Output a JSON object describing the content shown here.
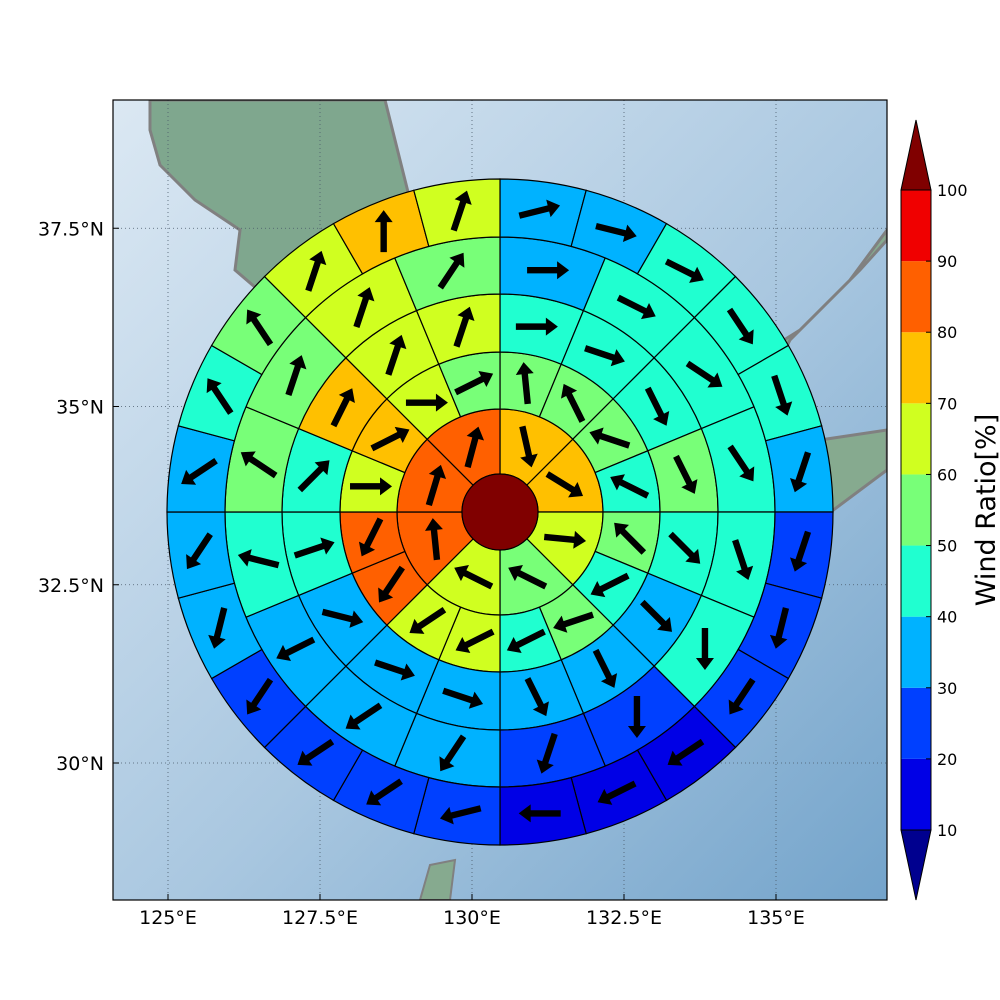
{
  "chart_data": {
    "type": "polar-sector-map",
    "projection_center": {
      "lon": 130.5,
      "lat": 33.5
    },
    "x_ticks": [
      {
        "value": 125.0,
        "label": "125°E"
      },
      {
        "value": 127.5,
        "label": "127.5°E"
      },
      {
        "value": 130.0,
        "label": "130°E"
      },
      {
        "value": 132.5,
        "label": "132.5°E"
      },
      {
        "value": 135.0,
        "label": "135°E"
      }
    ],
    "y_ticks": [
      {
        "value": 30.0,
        "label": "30°N"
      },
      {
        "value": 32.5,
        "label": "32.5°N"
      },
      {
        "value": 35.0,
        "label": "35°N"
      },
      {
        "value": 37.5,
        "label": "37.5°N"
      }
    ],
    "grid": true,
    "colorbar": {
      "label": "Wind Ratio[%]",
      "ticks": [
        "10",
        "20",
        "30",
        "40",
        "50",
        "60",
        "70",
        "80",
        "90",
        "100"
      ],
      "levels": [
        10,
        20,
        30,
        40,
        50,
        60,
        70,
        80,
        90,
        100
      ],
      "colors": [
        "#00008f",
        "#0000e6",
        "#0040ff",
        "#00b2ff",
        "#20ffd0",
        "#78ff78",
        "#d0ff20",
        "#ffc000",
        "#ff6000",
        "#f00000",
        "#800000"
      ],
      "extend": "both"
    },
    "center_cell": {
      "ratio": 100
    },
    "rings": [
      {
        "sectors": [
          {
            "ratio": 75,
            "dir": [
              18,
              -80
            ]
          },
          {
            "ratio": 75,
            "dir": [
              114,
              -70
            ]
          },
          {
            "ratio": 65,
            "dir": [
              210,
              -20
            ]
          },
          {
            "ratio": 55,
            "dir": [
              -60,
              30
            ]
          },
          {
            "ratio": 65,
            "dir": [
              -20,
              10
            ]
          },
          {
            "ratio": 85,
            "dir": [
              -4,
              40
            ]
          },
          {
            "ratio": 85,
            "dir": [
              12,
              40
            ]
          },
          {
            "ratio": 85,
            "dir": [
              8,
              30
            ]
          }
        ]
      },
      {
        "sectors": [
          {
            "ratio": 55,
            "dir": [
              -4,
              40
            ]
          },
          {
            "ratio": 55,
            "dir": [
              -10,
              20
            ]
          },
          {
            "ratio": 55,
            "dir": [
              -30,
              10
            ]
          },
          {
            "ratio": 45,
            "dir": [
              -40,
              20
            ]
          },
          {
            "ratio": 55,
            "dir": [
              -10,
              10
            ]
          },
          {
            "ratio": 45,
            "dir": [
              -20,
              -10
            ]
          },
          {
            "ratio": 55,
            "dir": [
              -30,
              -10
            ]
          },
          {
            "ratio": 45,
            "dir": [
              -40,
              -20
            ]
          },
          {
            "ratio": 65,
            "dir": [
              -40,
              -20
            ]
          },
          {
            "ratio": 65,
            "dir": [
              -30,
              -20
            ]
          },
          {
            "ratio": 85,
            "dir": [
              -20,
              -30
            ]
          },
          {
            "ratio": 85,
            "dir": [
              -10,
              -20
            ]
          },
          {
            "ratio": 65,
            "dir": [
              10,
              0
            ]
          },
          {
            "ratio": 75,
            "dir": [
              20,
              10
            ]
          },
          {
            "ratio": 65,
            "dir": [
              12,
              0
            ]
          },
          {
            "ratio": 55,
            "dir": [
              20,
              10
            ]
          }
        ]
      },
      {
        "sectors": [
          {
            "ratio": 45,
            "dir": [
              40,
              0
            ]
          },
          {
            "ratio": 45,
            "dir": [
              30,
              -10
            ]
          },
          {
            "ratio": 45,
            "dir": [
              10,
              -20
            ]
          },
          {
            "ratio": 55,
            "dir": [
              10,
              -20
            ]
          },
          {
            "ratio": 45,
            "dir": [
              10,
              -10
            ]
          },
          {
            "ratio": 35,
            "dir": [
              10,
              -10
            ]
          },
          {
            "ratio": 35,
            "dir": [
              10,
              -20
            ]
          },
          {
            "ratio": 35,
            "dir": [
              10,
              -20
            ]
          },
          {
            "ratio": 35,
            "dir": [
              30,
              -10
            ]
          },
          {
            "ratio": 35,
            "dir": [
              30,
              -10
            ]
          },
          {
            "ratio": 35,
            "dir": [
              40,
              -10
            ]
          },
          {
            "ratio": 45,
            "dir": [
              30,
              10
            ]
          },
          {
            "ratio": 45,
            "dir": [
              20,
              20
            ]
          },
          {
            "ratio": 75,
            "dir": [
              10,
              20
            ]
          },
          {
            "ratio": 65,
            "dir": [
              10,
              30
            ]
          },
          {
            "ratio": 65,
            "dir": [
              10,
              30
            ]
          }
        ]
      },
      {
        "sectors": [
          {
            "ratio": 35,
            "dir": [
              40,
              0
            ]
          },
          {
            "ratio": 45,
            "dir": [
              40,
              -20
            ]
          },
          {
            "ratio": 45,
            "dir": [
              30,
              -20
            ]
          },
          {
            "ratio": 45,
            "dir": [
              20,
              -30
            ]
          },
          {
            "ratio": 45,
            "dir": [
              10,
              -30
            ]
          },
          {
            "ratio": 45,
            "dir": [
              0,
              -30
            ]
          },
          {
            "ratio": 25,
            "dir": [
              0,
              -30
            ]
          },
          {
            "ratio": 25,
            "dir": [
              -10,
              -30
            ]
          },
          {
            "ratio": 35,
            "dir": [
              -20,
              -30
            ]
          },
          {
            "ratio": 35,
            "dir": [
              -30,
              -20
            ]
          },
          {
            "ratio": 35,
            "dir": [
              -40,
              -20
            ]
          },
          {
            "ratio": 45,
            "dir": [
              -40,
              10
            ]
          },
          {
            "ratio": 55,
            "dir": [
              -30,
              20
            ]
          },
          {
            "ratio": 55,
            "dir": [
              10,
              30
            ]
          },
          {
            "ratio": 65,
            "dir": [
              10,
              30
            ]
          },
          {
            "ratio": 55,
            "dir": [
              20,
              30
            ]
          }
        ]
      },
      {
        "sectors": [
          {
            "ratio": 35,
            "dir": [
              40,
              10
            ]
          },
          {
            "ratio": 35,
            "dir": [
              40,
              -10
            ]
          },
          {
            "ratio": 45,
            "dir": [
              40,
              -20
            ]
          },
          {
            "ratio": 45,
            "dir": [
              20,
              -30
            ]
          },
          {
            "ratio": 45,
            "dir": [
              10,
              -30
            ]
          },
          {
            "ratio": 35,
            "dir": [
              -10,
              -30
            ]
          },
          {
            "ratio": 25,
            "dir": [
              -10,
              -30
            ]
          },
          {
            "ratio": 25,
            "dir": [
              -10,
              -40
            ]
          },
          {
            "ratio": 25,
            "dir": [
              -20,
              -30
            ]
          },
          {
            "ratio": 15,
            "dir": [
              -30,
              -20
            ]
          },
          {
            "ratio": 15,
            "dir": [
              -40,
              -20
            ]
          },
          {
            "ratio": 15,
            "dir": [
              -40,
              0
            ]
          },
          {
            "ratio": 25,
            "dir": [
              -40,
              -10
            ]
          },
          {
            "ratio": 25,
            "dir": [
              -30,
              -20
            ]
          },
          {
            "ratio": 25,
            "dir": [
              -30,
              -20
            ]
          },
          {
            "ratio": 25,
            "dir": [
              -20,
              -30
            ]
          },
          {
            "ratio": 35,
            "dir": [
              -10,
              -40
            ]
          },
          {
            "ratio": 35,
            "dir": [
              -20,
              -30
            ]
          },
          {
            "ratio": 35,
            "dir": [
              -30,
              -20
            ]
          },
          {
            "ratio": 45,
            "dir": [
              -20,
              30
            ]
          },
          {
            "ratio": 55,
            "dir": [
              -20,
              30
            ]
          },
          {
            "ratio": 65,
            "dir": [
              10,
              30
            ]
          },
          {
            "ratio": 75,
            "dir": [
              0,
              30
            ]
          },
          {
            "ratio": 65,
            "dir": [
              10,
              30
            ]
          }
        ]
      }
    ]
  }
}
